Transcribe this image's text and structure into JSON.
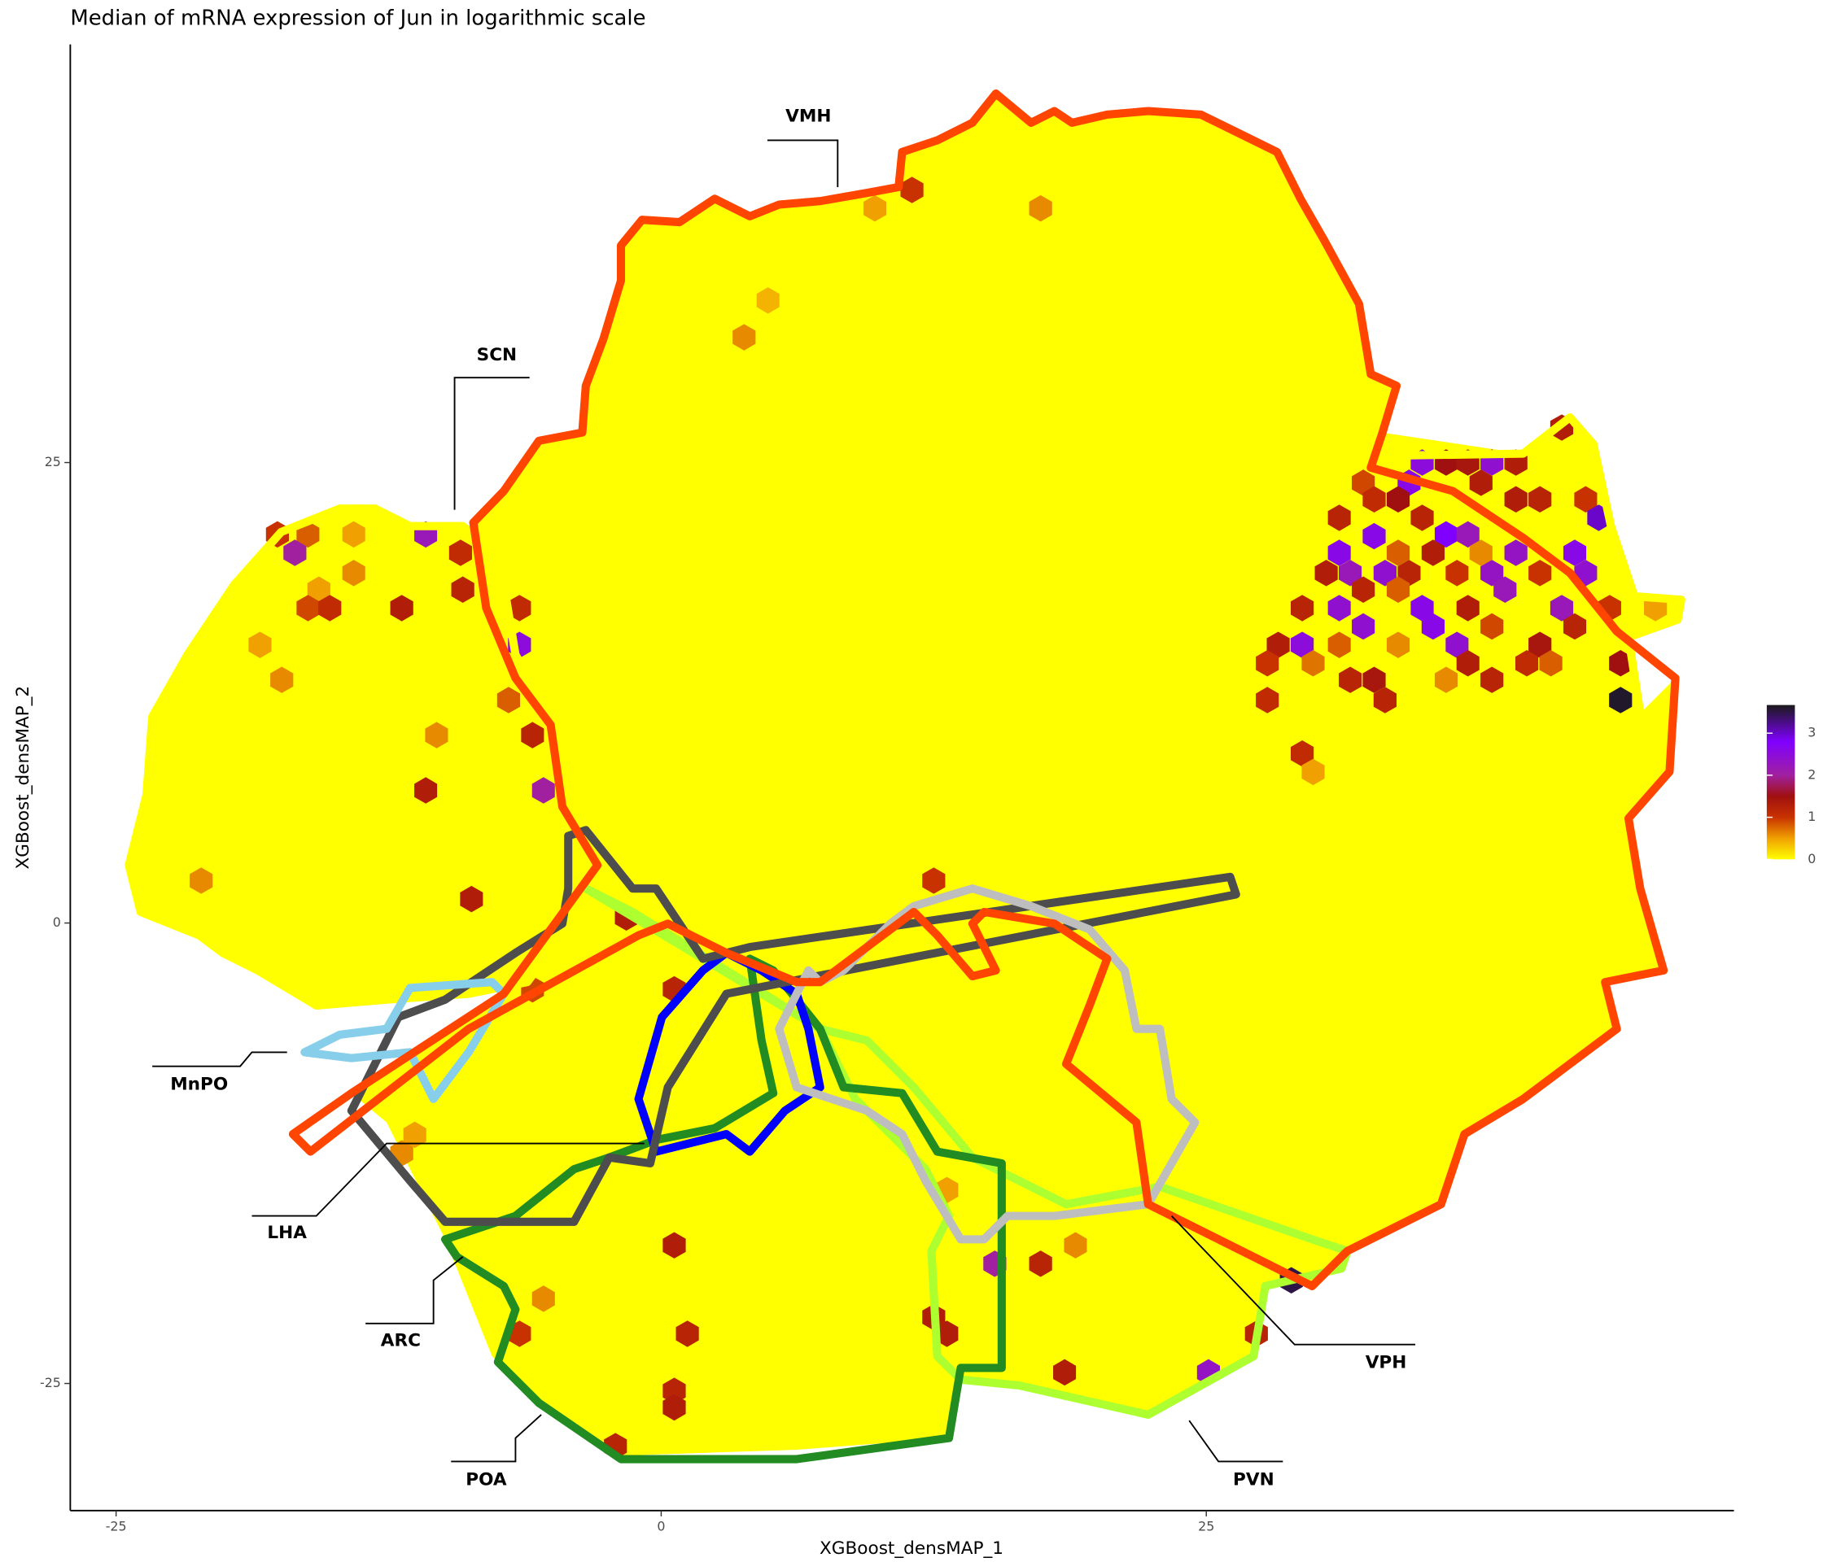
{
  "chart_data": {
    "type": "hexbin",
    "title": "Median of mRNA expression of Jun in logarithmic scale",
    "x_label": "XGBoost_densMAP_1",
    "y_label": "XGBoost_densMAP_2",
    "xlim": [
      -27.1,
      49.2
    ],
    "ylim": [
      -31.9,
      47.7
    ],
    "xticks": [
      -25,
      0,
      25
    ],
    "yticks": [
      -25,
      0,
      25
    ],
    "clim": [
      0,
      3.67
    ],
    "cticks": [
      0,
      1,
      2,
      3
    ],
    "colorscale": [
      [
        0,
        "#ffff00"
      ],
      [
        0.5,
        "#f0a000"
      ],
      [
        1,
        "#c83200"
      ],
      [
        1.5,
        "#a01010"
      ],
      [
        2,
        "#a020a0"
      ],
      [
        2.8,
        "#8000ff"
      ],
      [
        3.67,
        "#1a1a1a"
      ]
    ],
    "region_labels": [
      "VMH",
      "SCN",
      "MnPO",
      "LHA",
      "ARC",
      "POA",
      "PVN",
      "VPH"
    ],
    "points": [
      [
        11.5,
        39.8,
        1.0
      ],
      [
        9.8,
        38.8,
        0.5
      ],
      [
        17.4,
        38.8,
        0.6
      ],
      [
        4.9,
        33.8,
        0.4
      ],
      [
        3.8,
        31.8,
        0.6
      ],
      [
        -10.8,
        21.1,
        2.2
      ],
      [
        -9.2,
        20.1,
        1.1
      ],
      [
        -16.2,
        21.1,
        0.8
      ],
      [
        -14.1,
        21.1,
        0.5
      ],
      [
        -17.6,
        21.1,
        1.0
      ],
      [
        -16.8,
        20.1,
        2.0
      ],
      [
        -14.1,
        19.0,
        0.6
      ],
      [
        -9.1,
        18.1,
        1.2
      ],
      [
        -15.7,
        18.1,
        0.5
      ],
      [
        -16.2,
        17.1,
        0.9
      ],
      [
        -15.2,
        17.1,
        1.1
      ],
      [
        -11.9,
        17.1,
        1.3
      ],
      [
        -6.5,
        17.1,
        1.1
      ],
      [
        -6.5,
        15.1,
        2.5
      ],
      [
        -18.4,
        15.1,
        0.5
      ],
      [
        -17.4,
        13.2,
        0.6
      ],
      [
        -7.0,
        12.1,
        0.8
      ],
      [
        -5.9,
        10.2,
        1.2
      ],
      [
        -10.3,
        10.2,
        0.6
      ],
      [
        -10.8,
        7.2,
        1.3
      ],
      [
        -5.4,
        7.2,
        2.0
      ],
      [
        -21.1,
        2.3,
        0.6
      ],
      [
        -8.7,
        1.3,
        1.3
      ],
      [
        12.5,
        2.3,
        1.0
      ],
      [
        -5.9,
        -3.6,
        0.9
      ],
      [
        0.6,
        -3.6,
        1.2
      ],
      [
        -1.6,
        0.3,
        1.3
      ],
      [
        -11.9,
        -12.5,
        0.6
      ],
      [
        -11.3,
        -11.5,
        0.5
      ],
      [
        13.1,
        -14.5,
        0.5
      ],
      [
        0.6,
        -17.5,
        1.3
      ],
      [
        15.3,
        -18.5,
        2.0
      ],
      [
        17.4,
        -18.5,
        1.2
      ],
      [
        19.0,
        -17.5,
        0.6
      ],
      [
        -5.4,
        -20.4,
        0.6
      ],
      [
        12.5,
        -21.4,
        1.3
      ],
      [
        13.1,
        -22.3,
        1.3
      ],
      [
        1.2,
        -22.3,
        1.2
      ],
      [
        -6.5,
        -22.3,
        1.0
      ],
      [
        27.3,
        -22.3,
        1.2
      ],
      [
        28.9,
        -19.4,
        3.5
      ],
      [
        18.5,
        -24.4,
        1.3
      ],
      [
        25.1,
        -24.4,
        2.3
      ],
      [
        0.6,
        -25.4,
        1.2
      ],
      [
        0.6,
        -26.3,
        1.3
      ],
      [
        -2.1,
        -28.4,
        1.2
      ],
      [
        41.3,
        26.9,
        1.3
      ],
      [
        44.0,
        12.1,
        3.6
      ],
      [
        34.9,
        25.0,
        2.5
      ],
      [
        36.0,
        25.0,
        1.5
      ],
      [
        37.0,
        25.0,
        1.4
      ],
      [
        38.1,
        25.0,
        2.4
      ],
      [
        39.2,
        25.0,
        1.3
      ],
      [
        32.2,
        23.9,
        0.9
      ],
      [
        34.3,
        23.9,
        2.6
      ],
      [
        37.6,
        23.9,
        1.3
      ],
      [
        31.1,
        22.0,
        1.2
      ],
      [
        32.7,
        23.0,
        1.1
      ],
      [
        33.8,
        23.0,
        1.5
      ],
      [
        34.9,
        22.0,
        1.2
      ],
      [
        36.0,
        21.1,
        2.8
      ],
      [
        37.0,
        21.1,
        2.2
      ],
      [
        39.2,
        23.0,
        1.3
      ],
      [
        40.3,
        23.0,
        1.2
      ],
      [
        42.4,
        23.0,
        1.0
      ],
      [
        43.0,
        22.0,
        3.0
      ],
      [
        31.1,
        20.1,
        2.6
      ],
      [
        32.7,
        21.0,
        2.6
      ],
      [
        33.8,
        20.1,
        0.8
      ],
      [
        35.4,
        20.1,
        1.3
      ],
      [
        37.6,
        20.1,
        0.6
      ],
      [
        39.2,
        20.1,
        2.3
      ],
      [
        41.9,
        20.1,
        2.6
      ],
      [
        30.5,
        19.0,
        1.3
      ],
      [
        31.6,
        19.0,
        2.2
      ],
      [
        33.2,
        19.0,
        2.4
      ],
      [
        34.3,
        19.0,
        1.2
      ],
      [
        36.5,
        19.0,
        1.0
      ],
      [
        38.1,
        19.0,
        2.3
      ],
      [
        40.3,
        19.0,
        1.0
      ],
      [
        42.4,
        19.0,
        2.4
      ],
      [
        31.1,
        17.1,
        2.4
      ],
      [
        32.2,
        18.1,
        1.2
      ],
      [
        33.8,
        18.1,
        0.8
      ],
      [
        34.9,
        17.1,
        2.6
      ],
      [
        37.0,
        17.1,
        1.3
      ],
      [
        38.7,
        18.1,
        2.2
      ],
      [
        41.3,
        17.1,
        2.2
      ],
      [
        43.5,
        17.1,
        1.0
      ],
      [
        29.4,
        17.1,
        1.2
      ],
      [
        28.3,
        15.1,
        1.3
      ],
      [
        29.4,
        15.1,
        2.5
      ],
      [
        31.1,
        15.1,
        0.8
      ],
      [
        32.2,
        16.1,
        2.4
      ],
      [
        33.8,
        15.1,
        0.6
      ],
      [
        35.4,
        16.1,
        2.6
      ],
      [
        36.5,
        15.1,
        2.4
      ],
      [
        38.1,
        16.1,
        0.9
      ],
      [
        40.3,
        15.1,
        1.4
      ],
      [
        41.9,
        16.1,
        1.2
      ],
      [
        44.0,
        14.1,
        1.5
      ],
      [
        27.8,
        14.1,
        1.0
      ],
      [
        29.9,
        14.1,
        0.7
      ],
      [
        31.6,
        13.2,
        1.2
      ],
      [
        32.7,
        13.2,
        1.4
      ],
      [
        36.0,
        13.2,
        0.6
      ],
      [
        37.0,
        14.1,
        1.3
      ],
      [
        38.1,
        13.2,
        1.2
      ],
      [
        39.7,
        14.1,
        1.1
      ],
      [
        40.8,
        14.1,
        0.8
      ],
      [
        27.8,
        12.1,
        1.1
      ],
      [
        33.2,
        12.1,
        1.2
      ],
      [
        29.4,
        9.2,
        1.1
      ],
      [
        29.9,
        8.2,
        0.5
      ],
      [
        45.6,
        17.1,
        0.5
      ]
    ]
  }
}
